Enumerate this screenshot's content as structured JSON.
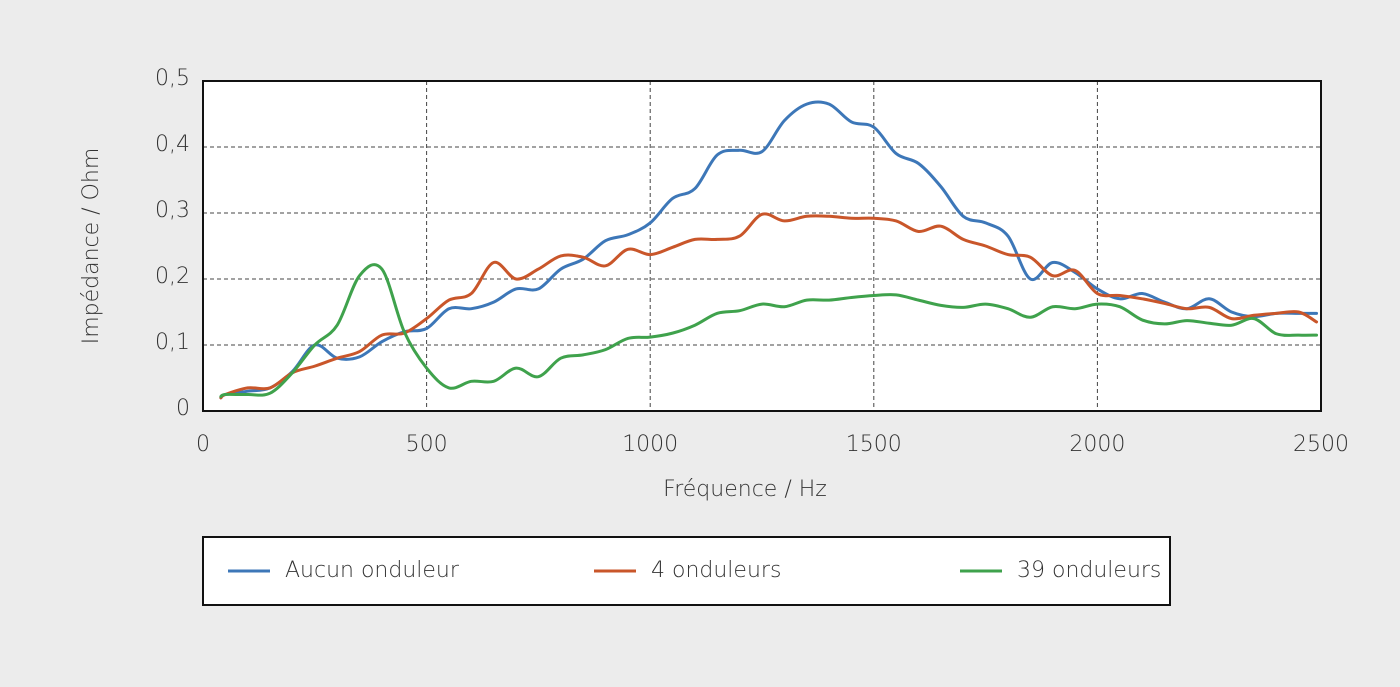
{
  "chart_data": {
    "type": "line",
    "xlabel": "Fréquence / Hz",
    "ylabel": "Impédance / Ohm",
    "x": [
      40,
      50,
      100,
      150,
      200,
      250,
      300,
      350,
      400,
      450,
      500,
      550,
      600,
      650,
      700,
      750,
      800,
      850,
      900,
      950,
      1000,
      1050,
      1100,
      1150,
      1200,
      1250,
      1300,
      1350,
      1400,
      1450,
      1500,
      1550,
      1600,
      1650,
      1700,
      1750,
      1800,
      1850,
      1900,
      1950,
      2000,
      2050,
      2100,
      2150,
      2200,
      2250,
      2300,
      2350,
      2400,
      2450,
      2490
    ],
    "series": [
      {
        "name": "Aucun onduleur",
        "color": "#3d77b8",
        "values": [
          0.02,
          0.025,
          0.03,
          0.035,
          0.06,
          0.1,
          0.08,
          0.082,
          0.105,
          0.12,
          0.125,
          0.155,
          0.155,
          0.165,
          0.185,
          0.185,
          0.215,
          0.23,
          0.258,
          0.267,
          0.285,
          0.322,
          0.337,
          0.388,
          0.395,
          0.393,
          0.44,
          0.465,
          0.465,
          0.438,
          0.43,
          0.39,
          0.375,
          0.34,
          0.295,
          0.285,
          0.265,
          0.2,
          0.225,
          0.21,
          0.185,
          0.17,
          0.178,
          0.165,
          0.155,
          0.17,
          0.15,
          0.143,
          0.148,
          0.148,
          0.148
        ]
      },
      {
        "name": "4 onduleurs",
        "color": "#c9562a",
        "values": [
          0.02,
          0.025,
          0.035,
          0.035,
          0.058,
          0.068,
          0.08,
          0.09,
          0.115,
          0.118,
          0.14,
          0.168,
          0.178,
          0.225,
          0.2,
          0.215,
          0.235,
          0.233,
          0.22,
          0.245,
          0.237,
          0.248,
          0.26,
          0.26,
          0.265,
          0.298,
          0.288,
          0.295,
          0.295,
          0.292,
          0.292,
          0.288,
          0.272,
          0.28,
          0.26,
          0.25,
          0.237,
          0.233,
          0.205,
          0.213,
          0.178,
          0.175,
          0.17,
          0.163,
          0.155,
          0.157,
          0.14,
          0.145,
          0.148,
          0.15,
          0.135
        ]
      },
      {
        "name": "39 onduleurs",
        "color": "#3fa24c",
        "values": [
          0.022,
          0.025,
          0.025,
          0.027,
          0.058,
          0.1,
          0.13,
          0.205,
          0.215,
          0.12,
          0.065,
          0.035,
          0.045,
          0.045,
          0.065,
          0.052,
          0.08,
          0.085,
          0.093,
          0.11,
          0.112,
          0.118,
          0.13,
          0.148,
          0.152,
          0.162,
          0.158,
          0.168,
          0.168,
          0.172,
          0.175,
          0.176,
          0.168,
          0.16,
          0.157,
          0.162,
          0.155,
          0.142,
          0.158,
          0.155,
          0.162,
          0.158,
          0.138,
          0.132,
          0.137,
          0.133,
          0.13,
          0.14,
          0.117,
          0.115,
          0.115
        ]
      }
    ],
    "xlim": [
      0,
      2500
    ],
    "xticks": [
      0,
      500,
      1000,
      1500,
      2000,
      2500
    ],
    "ylim": [
      0,
      0.5
    ],
    "yticks": [
      0,
      {
        "value": 0.1,
        "label": "0,1"
      },
      {
        "value": 0.2,
        "label": "0,2"
      },
      {
        "value": 0.3,
        "label": "0,3"
      },
      {
        "value": 0.4,
        "label": "0,4"
      },
      {
        "value": 0.5,
        "label": "0,5"
      }
    ],
    "grid": true
  }
}
